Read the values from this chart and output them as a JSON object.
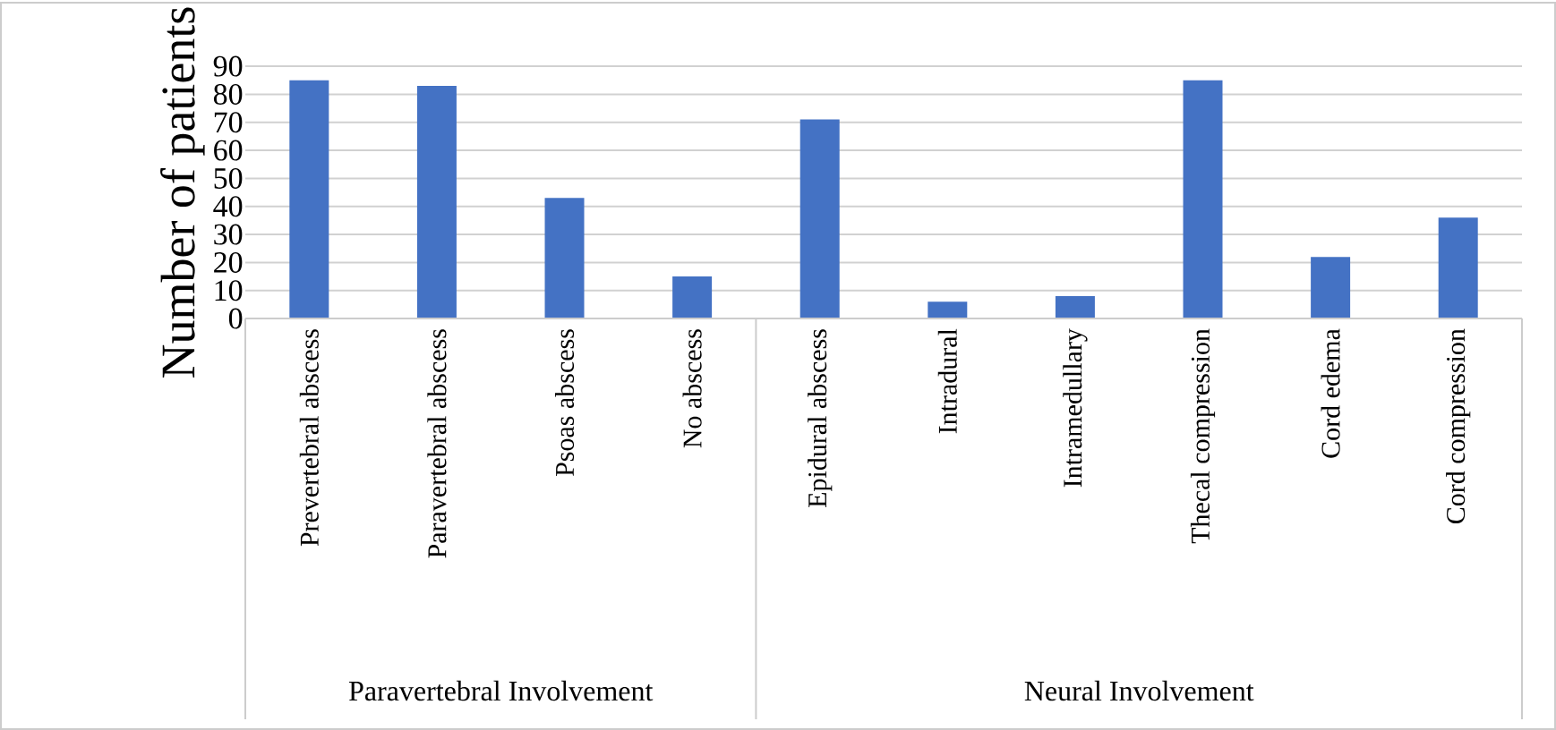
{
  "chart_data": {
    "type": "bar",
    "ylabel": "Number of patients",
    "categories": [
      "Prevertebral abscess",
      "Paravertebral abscess",
      "Psoas abscess",
      "No abscess",
      "Epidural abscess",
      "Intradural",
      "Intramedullary",
      "Thecal compression",
      "Cord edema",
      "Cord compression"
    ],
    "values": [
      85,
      83,
      43,
      15,
      71,
      6,
      8,
      85,
      22,
      36
    ],
    "color": "#4472c4",
    "ylim": [
      0,
      90
    ],
    "yticks": [
      0,
      10,
      20,
      30,
      40,
      50,
      60,
      70,
      80,
      90
    ],
    "grid": "y",
    "annotations": [
      "Paravertebral Involvement",
      "Neural Involvement"
    ]
  }
}
